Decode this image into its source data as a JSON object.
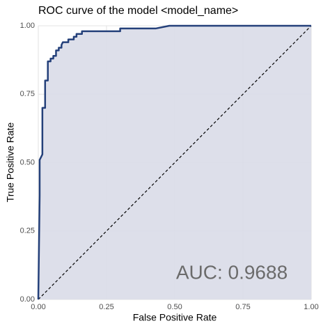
{
  "chart_data": {
    "type": "line",
    "title": "ROC curve of the model <model_name>",
    "x_label": "False Positive Rate",
    "y_label": "True Positive Rate",
    "annotation": "AUC: 0.9688",
    "xlim": [
      0,
      1
    ],
    "ylim": [
      0,
      1
    ],
    "xticks": [
      {
        "value": 0,
        "label": "0.00"
      },
      {
        "value": 0.25,
        "label": "0.25"
      },
      {
        "value": 0.5,
        "label": "0.50"
      },
      {
        "value": 0.75,
        "label": "0.75"
      },
      {
        "value": 1,
        "label": "1.00"
      }
    ],
    "yticks": [
      {
        "value": 0,
        "label": "0.00"
      },
      {
        "value": 0.25,
        "label": "0.25"
      },
      {
        "value": 0.5,
        "label": "0.50"
      },
      {
        "value": 0.75,
        "label": "0.75"
      },
      {
        "value": 1,
        "label": "1.00"
      }
    ],
    "grid": true,
    "fill": "#d9dce8",
    "series": [
      {
        "color": "#24407a",
        "x": [
          0,
          0.005,
          0.005,
          0.01,
          0.015,
          0.015,
          0.025,
          0.025,
          0.035,
          0.035,
          0.045,
          0.045,
          0.055,
          0.055,
          0.065,
          0.065,
          0.075,
          0.075,
          0.085,
          0.085,
          0.09,
          0.11,
          0.11,
          0.13,
          0.13,
          0.14,
          0.14,
          0.16,
          0.16,
          0.3,
          0.3,
          0.43,
          0.48,
          1.0
        ],
        "values": [
          0,
          0.38,
          0.51,
          0.52,
          0.53,
          0.7,
          0.7,
          0.8,
          0.8,
          0.87,
          0.87,
          0.88,
          0.88,
          0.89,
          0.89,
          0.91,
          0.91,
          0.92,
          0.92,
          0.93,
          0.94,
          0.94,
          0.95,
          0.95,
          0.96,
          0.96,
          0.97,
          0.97,
          0.98,
          0.98,
          0.99,
          0.99,
          1.0,
          1.0
        ]
      }
    ]
  }
}
